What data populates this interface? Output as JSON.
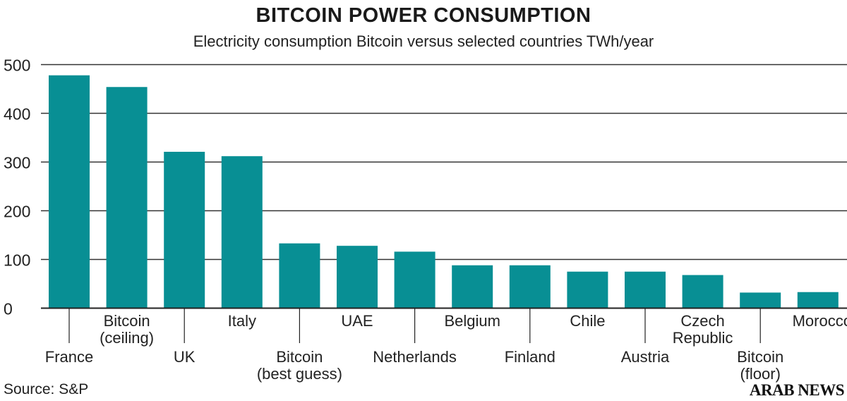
{
  "chart_data": {
    "type": "bar",
    "title": "BITCOIN POWER CONSUMPTION",
    "subtitle": "Electricity consumption Bitcoin versus selected countries TWh/year",
    "xlabel": "",
    "ylabel": "TWh/year",
    "ylim": [
      0,
      500
    ],
    "yticks": [
      0,
      100,
      200,
      300,
      400,
      500
    ],
    "grid": true,
    "categories": [
      [
        "France"
      ],
      [
        "Bitcoin",
        "(ceiling)"
      ],
      [
        "UK"
      ],
      [
        "Italy"
      ],
      [
        "Bitcoin",
        "(best guess)"
      ],
      [
        "UAE"
      ],
      [
        "Netherlands"
      ],
      [
        "Belgium"
      ],
      [
        "Finland"
      ],
      [
        "Chile"
      ],
      [
        "Austria"
      ],
      [
        "Czech",
        "Republic"
      ],
      [
        "Bitcoin",
        "(floor)"
      ],
      [
        "Morocco"
      ]
    ],
    "values": [
      478,
      454,
      321,
      312,
      133,
      128,
      116,
      88,
      88,
      75,
      75,
      68,
      32,
      33
    ],
    "bar_color": "#088f94"
  },
  "source": "Source: S&P",
  "logo": "ARAB NEWS"
}
